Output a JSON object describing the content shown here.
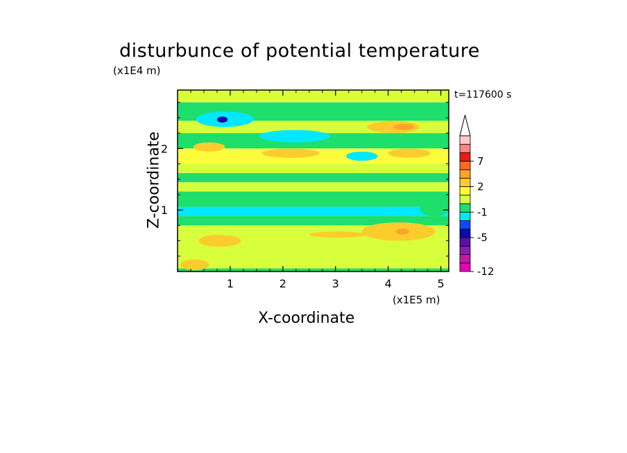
{
  "chart_data": {
    "type": "heatmap",
    "title": "disturbunce of potential temperature",
    "xlabel": "X-coordinate",
    "ylabel": "Z-coordinate",
    "x_unit_label": "(x1E5 m)",
    "y_unit_label": "(x1E4 m)",
    "time_label": "t=117600 s",
    "xlim": [
      0,
      5.15
    ],
    "ylim": [
      0,
      2.95
    ],
    "x_ticks": [
      1,
      2,
      3,
      4,
      5
    ],
    "x_tick_labels": [
      "1",
      "2",
      "3",
      "4",
      "5"
    ],
    "y_ticks": [
      1,
      2
    ],
    "y_tick_labels": [
      "1",
      "2"
    ],
    "colorbar": {
      "levels": [
        -12,
        -11,
        -9,
        -7,
        -5,
        -3,
        -2,
        -1,
        0,
        1,
        2,
        3,
        5,
        7,
        9,
        11
      ],
      "colors": [
        "#e800b8",
        "#c01aa0",
        "#8a1ab0",
        "#5a10a8",
        "#0a0ab0",
        "#0a4cff",
        "#00e8ff",
        "#1ede6c",
        "#d8ff3c",
        "#fcfc3c",
        "#fccc2c",
        "#fca42c",
        "#ff6a1c",
        "#e81a1a",
        "#ff8484",
        "#ffc8c8"
      ],
      "labels": [
        {
          "value": -12,
          "text": "-12"
        },
        {
          "value": -5,
          "text": "-5"
        },
        {
          "value": -1,
          "text": "-1"
        },
        {
          "value": 2,
          "text": "2"
        },
        {
          "value": 7,
          "text": "7"
        }
      ],
      "extend_max": true
    },
    "bands": [
      {
        "z": [
          2.75,
          2.95
        ],
        "value": 0.5
      },
      {
        "z": [
          2.45,
          2.75
        ],
        "value": -0.5
      },
      {
        "z": [
          2.25,
          2.45
        ],
        "value": 0.5
      },
      {
        "z": [
          2.0,
          2.25
        ],
        "value": -0.5
      },
      {
        "z": [
          1.75,
          2.0
        ],
        "value": 1.5
      },
      {
        "z": [
          1.6,
          1.75
        ],
        "value": 0.5
      },
      {
        "z": [
          1.45,
          1.6
        ],
        "value": -0.5
      },
      {
        "z": [
          1.3,
          1.45
        ],
        "value": 0.5
      },
      {
        "z": [
          1.05,
          1.3
        ],
        "value": -0.5
      },
      {
        "z": [
          0.9,
          1.05
        ],
        "value": -1.5
      },
      {
        "z": [
          0.75,
          0.9
        ],
        "value": -0.5
      },
      {
        "z": [
          0.6,
          0.75
        ],
        "value": 0.5
      },
      {
        "z": [
          0.05,
          0.6
        ],
        "value": 0.5
      },
      {
        "z": [
          0.0,
          0.05
        ],
        "value": -0.5
      }
    ],
    "features": [
      {
        "x": [
          0.35,
          1.45
        ],
        "z": [
          2.35,
          2.6
        ],
        "value": -1.5
      },
      {
        "x": [
          0.75,
          0.95
        ],
        "z": [
          2.42,
          2.52
        ],
        "value": -4
      },
      {
        "x": [
          1.55,
          2.9
        ],
        "z": [
          2.1,
          2.3
        ],
        "value": -1.5
      },
      {
        "x": [
          3.2,
          3.8
        ],
        "z": [
          1.8,
          1.95
        ],
        "value": -1.5
      },
      {
        "x": [
          3.6,
          4.6
        ],
        "z": [
          2.25,
          2.45
        ],
        "value": 2.5
      },
      {
        "x": [
          4.1,
          4.5
        ],
        "z": [
          2.3,
          2.4
        ],
        "value": 3.5
      },
      {
        "x": [
          0.3,
          0.9
        ],
        "z": [
          1.95,
          2.1
        ],
        "value": 2.5
      },
      {
        "x": [
          1.6,
          2.7
        ],
        "z": [
          1.85,
          2.0
        ],
        "value": 2.5
      },
      {
        "x": [
          4.0,
          4.8
        ],
        "z": [
          1.85,
          2.0
        ],
        "value": 2.5
      },
      {
        "x": [
          2.5,
          3.6
        ],
        "z": [
          0.55,
          0.65
        ],
        "value": 2.5
      },
      {
        "x": [
          3.5,
          4.9
        ],
        "z": [
          0.5,
          0.8
        ],
        "value": 2.5
      },
      {
        "x": [
          4.15,
          4.4
        ],
        "z": [
          0.6,
          0.7
        ],
        "value": 4
      },
      {
        "x": [
          0.4,
          1.2
        ],
        "z": [
          0.4,
          0.6
        ],
        "value": 2.5
      },
      {
        "x": [
          0.05,
          0.6
        ],
        "z": [
          0.02,
          0.2
        ],
        "value": 2.5
      },
      {
        "x": [
          0.0,
          0.2
        ],
        "z": [
          1.05,
          1.3
        ],
        "value": -0.5
      },
      {
        "x": [
          4.6,
          5.15
        ],
        "z": [
          0.9,
          1.15
        ],
        "value": -0.5
      }
    ]
  }
}
